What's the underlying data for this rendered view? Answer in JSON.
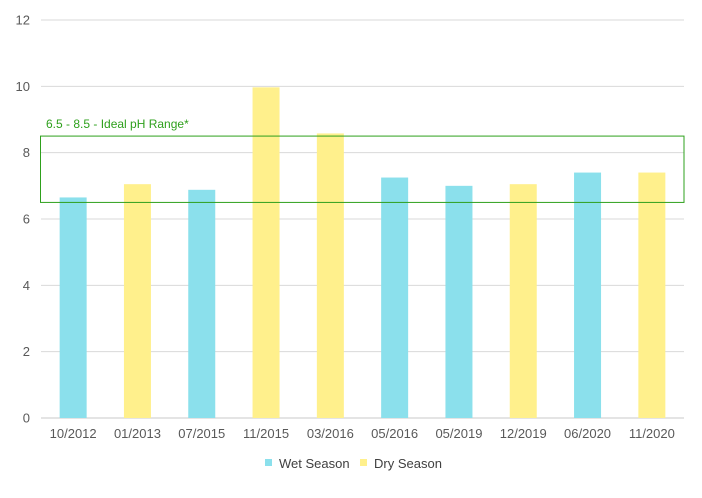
{
  "chart_data": {
    "type": "bar",
    "title": "",
    "xlabel": "",
    "ylabel": "",
    "ylim": [
      0,
      12
    ],
    "yticks": [
      0,
      2,
      4,
      6,
      8,
      10,
      12
    ],
    "grid": true,
    "categories": [
      "10/2012",
      "01/2013",
      "07/2015",
      "11/2015",
      "03/2016",
      "05/2016",
      "05/2019",
      "12/2019",
      "06/2020",
      "11/2020"
    ],
    "values": [
      6.65,
      7.05,
      6.88,
      9.97,
      8.58,
      7.25,
      7.0,
      7.05,
      7.4,
      7.4
    ],
    "season": [
      "Wet Season",
      "Dry Season",
      "Wet Season",
      "Dry Season",
      "Dry Season",
      "Wet Season",
      "Wet Season",
      "Dry Season",
      "Wet Season",
      "Dry Season"
    ],
    "legend": {
      "position": "bottom",
      "entries": [
        {
          "name": "Wet Season",
          "color": "#8be0ec"
        },
        {
          "name": "Dry Season",
          "color": "#fff08c"
        }
      ]
    },
    "range_band": {
      "low": 6.5,
      "high": 8.5,
      "label": "6.5 - 8.5 - Ideal pH Range*",
      "color": "#2ea01c"
    }
  }
}
